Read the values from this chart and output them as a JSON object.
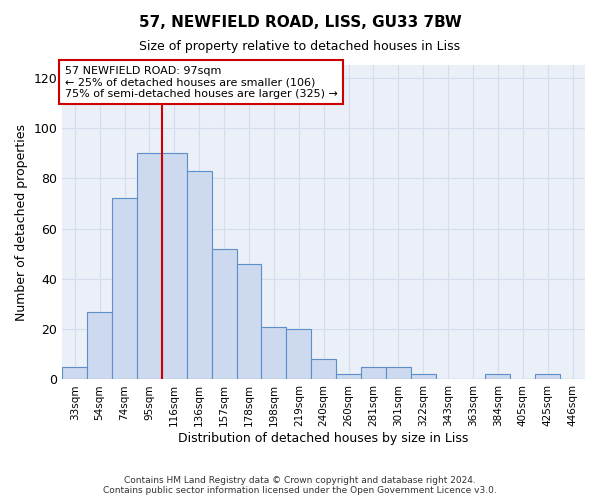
{
  "title": "57, NEWFIELD ROAD, LISS, GU33 7BW",
  "subtitle": "Size of property relative to detached houses in Liss",
  "xlabel": "Distribution of detached houses by size in Liss",
  "ylabel": "Number of detached properties",
  "bar_labels": [
    "33sqm",
    "54sqm",
    "74sqm",
    "95sqm",
    "116sqm",
    "136sqm",
    "157sqm",
    "178sqm",
    "198sqm",
    "219sqm",
    "240sqm",
    "260sqm",
    "281sqm",
    "301sqm",
    "322sqm",
    "343sqm",
    "363sqm",
    "384sqm",
    "405sqm",
    "425sqm",
    "446sqm"
  ],
  "bar_heights": [
    5,
    27,
    72,
    90,
    90,
    83,
    52,
    46,
    21,
    20,
    8,
    2,
    5,
    5,
    2,
    0,
    0,
    2,
    0,
    2,
    0
  ],
  "bar_color": "#ccd9ee",
  "bar_edge_color": "#5b8fc9",
  "vline_pos": 3.5,
  "vline_color": "#cc0000",
  "ylim": [
    0,
    125
  ],
  "yticks": [
    0,
    20,
    40,
    60,
    80,
    100,
    120
  ],
  "annotation_text": "57 NEWFIELD ROAD: 97sqm\n← 25% of detached houses are smaller (106)\n75% of semi-detached houses are larger (325) →",
  "annotation_box_color": "#ffffff",
  "annotation_box_edge": "#cc0000",
  "footer_text": "Contains HM Land Registry data © Crown copyright and database right 2024.\nContains public sector information licensed under the Open Government Licence v3.0.",
  "grid_color": "#d5dded",
  "background_color": "#eaeff8",
  "fig_background": "#ffffff"
}
